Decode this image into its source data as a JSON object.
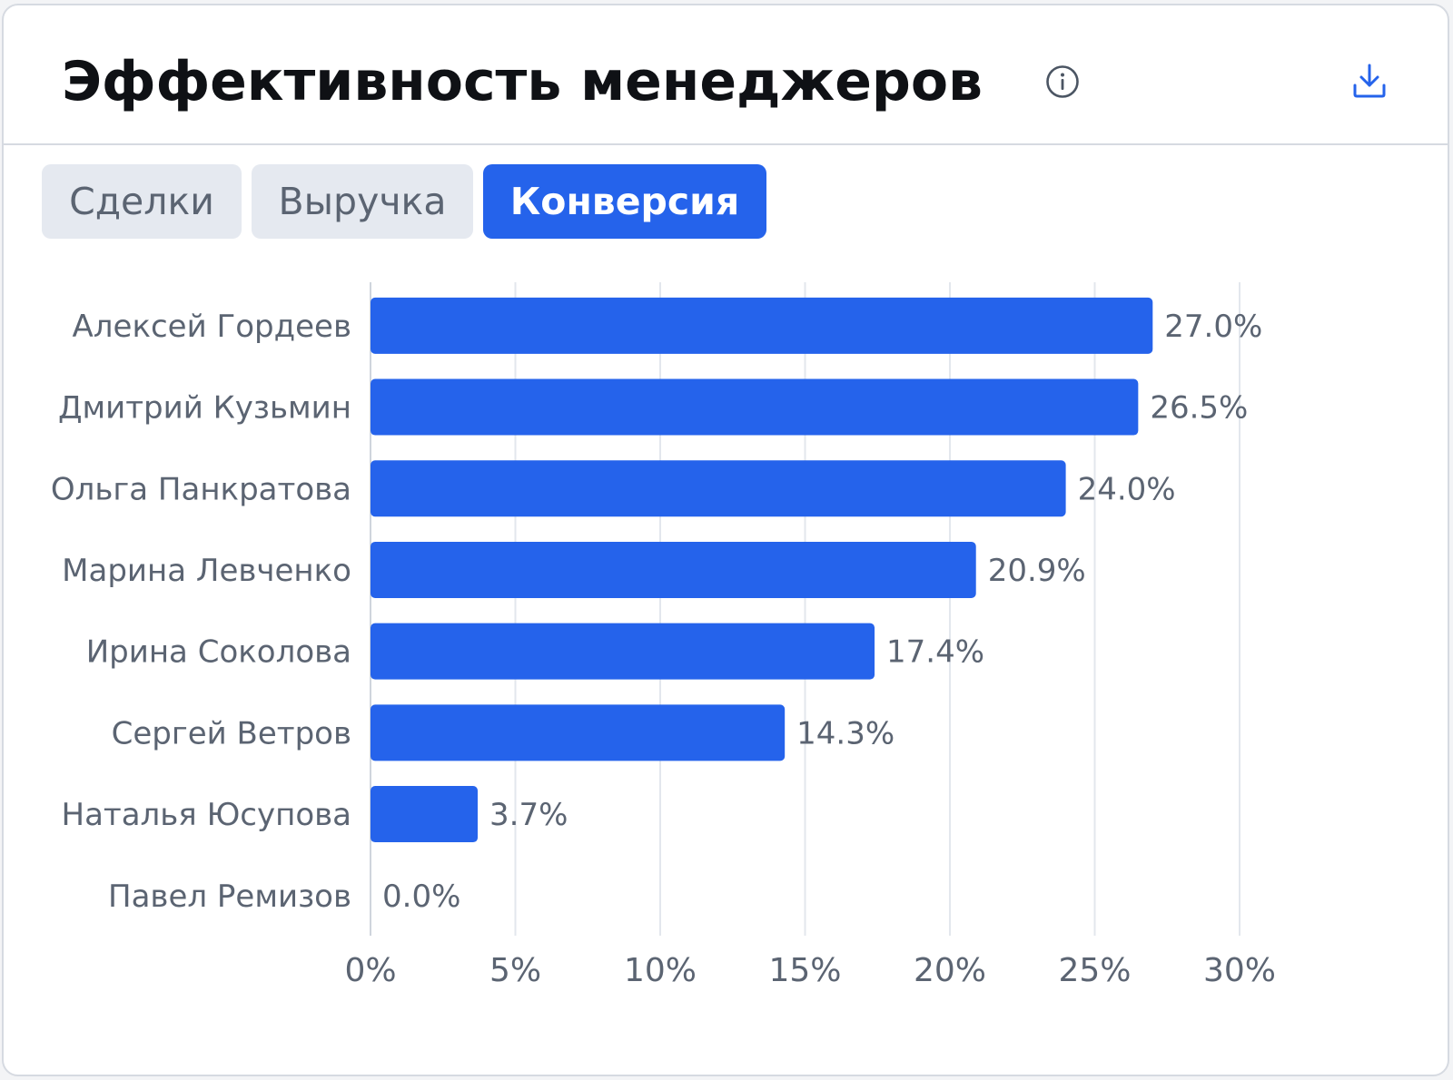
{
  "header": {
    "title": "Эффективность менеджеров"
  },
  "icons": {
    "info": "info-icon",
    "download": "download-icon"
  },
  "tabs": [
    {
      "label": "Сделки",
      "active": false
    },
    {
      "label": "Выручка",
      "active": false
    },
    {
      "label": "Конверсия",
      "active": true
    }
  ],
  "colors": {
    "accent": "#2563eb",
    "bar": "#2563eb",
    "label": "#5b6472",
    "grid": "#e3e7ed"
  },
  "chart_data": {
    "type": "bar",
    "orientation": "horizontal",
    "categories": [
      "Алексей Гордеев",
      "Дмитрий Кузьмин",
      "Ольга Панкратова",
      "Марина Левченко",
      "Ирина Соколова",
      "Сергей Ветров",
      "Наталья Юсупова",
      "Павел Ремизов"
    ],
    "values": [
      27.0,
      26.5,
      24.0,
      20.9,
      17.4,
      14.3,
      3.7,
      0.0
    ],
    "value_labels": [
      "27.0%",
      "26.5%",
      "24.0%",
      "20.9%",
      "17.4%",
      "14.3%",
      "3.7%",
      "0.0%"
    ],
    "xlim": [
      0,
      30
    ],
    "xticks": [
      0,
      5,
      10,
      15,
      20,
      25,
      30
    ],
    "xtick_labels": [
      "0%",
      "5%",
      "10%",
      "15%",
      "20%",
      "25%",
      "30%"
    ],
    "grid": "vertical",
    "legend": "none"
  }
}
